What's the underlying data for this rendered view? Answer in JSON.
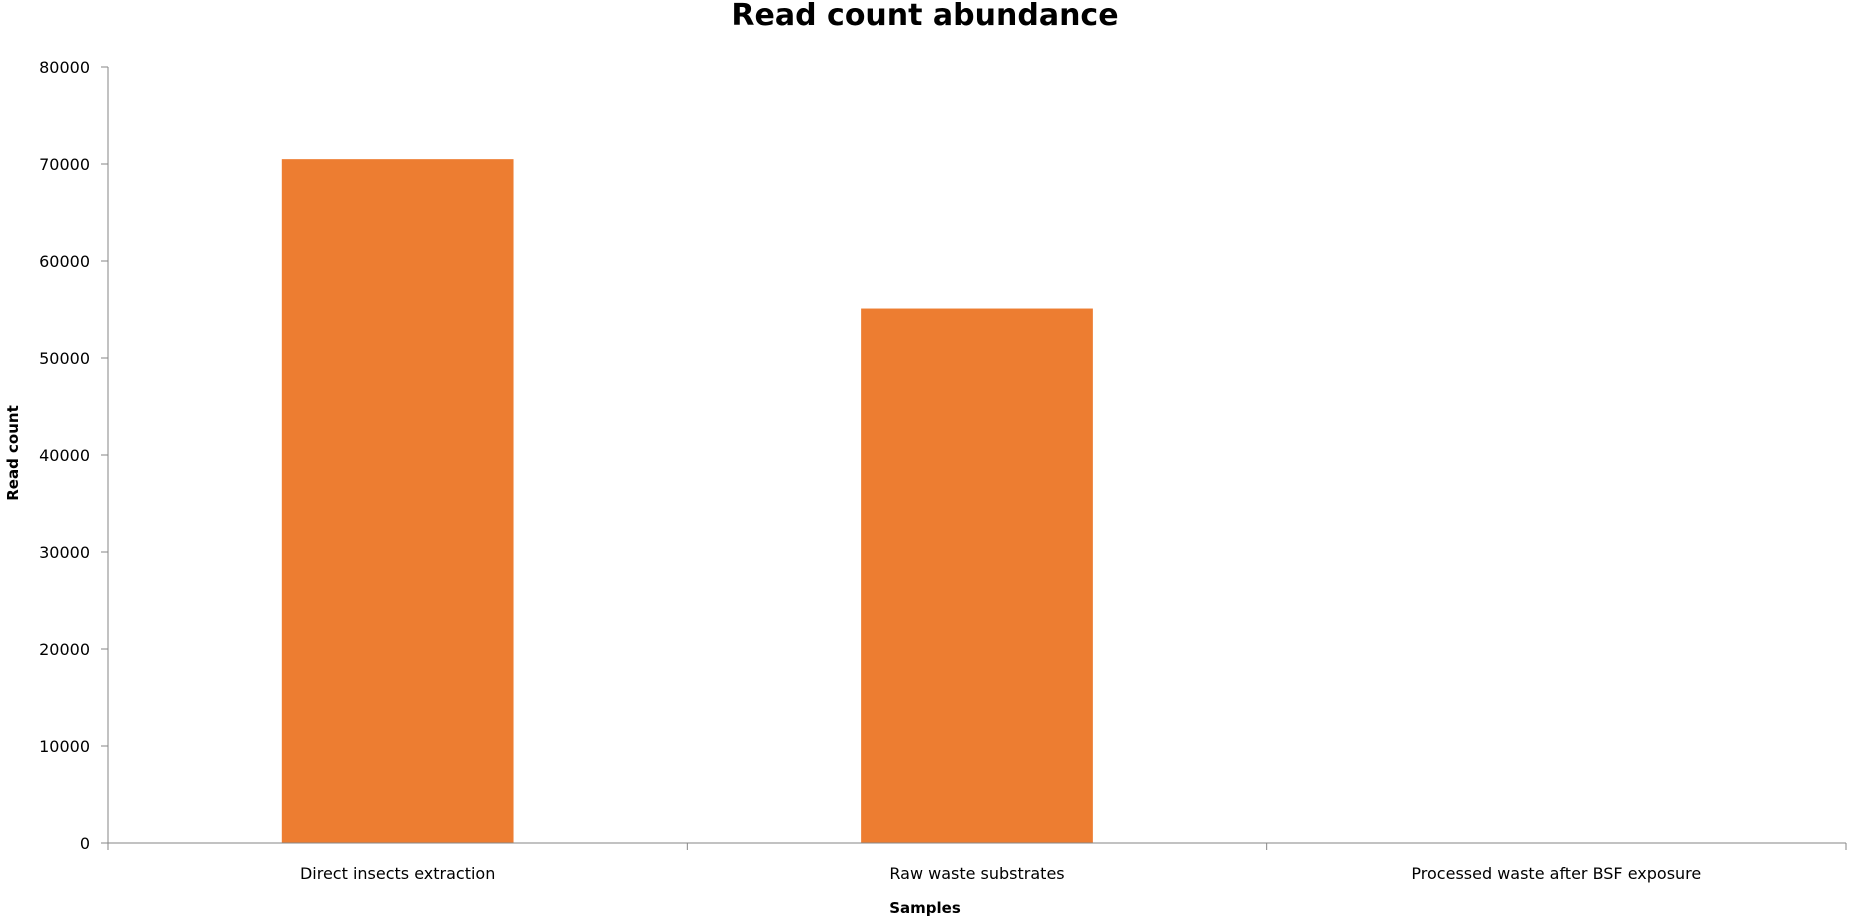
{
  "chart_data": {
    "type": "bar",
    "title": "Read count abundance",
    "xlabel": "Samples",
    "ylabel": "Read count",
    "categories": [
      "Direct insects extraction",
      "Raw waste substrates",
      "Processed waste after BSF exposure"
    ],
    "values": [
      70500,
      55100,
      0
    ],
    "ylim": [
      0,
      80000
    ],
    "yticks": [
      0,
      10000,
      20000,
      30000,
      40000,
      50000,
      60000,
      70000,
      80000
    ],
    "ytick_labels": [
      "0",
      "10000",
      "20000",
      "30000",
      "40000",
      "50000",
      "60000",
      "70000",
      "80000"
    ],
    "grid": false,
    "legend": "none",
    "colors": {
      "bar": "#ED7D31",
      "axis": "#868686",
      "text": "#000000"
    }
  }
}
